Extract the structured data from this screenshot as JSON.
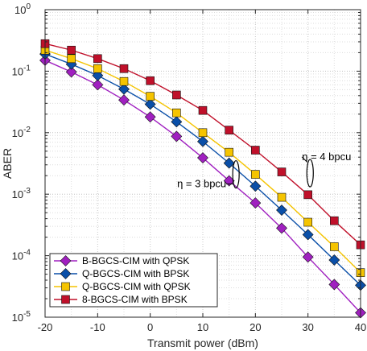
{
  "chart_data": {
    "type": "line",
    "title": "",
    "xlabel": "Transmit power (dBm)",
    "ylabel": "ABER",
    "xlim": [
      -20,
      40
    ],
    "ylim": [
      1e-05,
      1
    ],
    "yscale": "log",
    "grid": true,
    "legend_position": "bottom-left",
    "x": [
      -20,
      -15,
      -10,
      -5,
      0,
      5,
      10,
      15,
      20,
      25,
      30,
      35,
      40
    ],
    "x_ticks": [
      "-20",
      "-10",
      "0",
      "10",
      "20",
      "30",
      "40"
    ],
    "y_ticks": [
      {
        "base": "10",
        "exp": "0"
      },
      {
        "base": "10",
        "exp": "-1"
      },
      {
        "base": "10",
        "exp": "-2"
      },
      {
        "base": "10",
        "exp": "-3"
      },
      {
        "base": "10",
        "exp": "-4"
      },
      {
        "base": "10",
        "exp": "-5"
      }
    ],
    "series": [
      {
        "name": "B-BGCS-CIM with QPSK",
        "color": "#a020c0",
        "marker": "diamond",
        "values": [
          0.15,
          0.097,
          0.06,
          0.034,
          0.018,
          0.0087,
          0.0039,
          0.00165,
          0.00072,
          0.00028,
          9.5e-05,
          3.4e-05,
          1.18e-05
        ]
      },
      {
        "name": "Q-BGCS-CIM with BPSK",
        "color": "#0a4fa8",
        "marker": "diamond",
        "values": [
          0.19,
          0.13,
          0.085,
          0.051,
          0.029,
          0.015,
          0.0072,
          0.0032,
          0.00135,
          0.00055,
          0.00022,
          8.5e-05,
          3.3e-05
        ]
      },
      {
        "name": "Q-BGCS-CIM with QPSK",
        "color": "#f5c400",
        "marker": "square",
        "values": [
          0.22,
          0.16,
          0.11,
          0.068,
          0.039,
          0.021,
          0.01,
          0.0048,
          0.0021,
          0.00089,
          0.00035,
          0.00014,
          5.3e-05
        ]
      },
      {
        "name": "8-BGCS-CIM with BPSK",
        "color": "#c0102a",
        "marker": "square",
        "values": [
          0.28,
          0.22,
          0.16,
          0.11,
          0.07,
          0.041,
          0.023,
          0.011,
          0.0052,
          0.0023,
          0.00098,
          0.00037,
          0.00015
        ]
      }
    ],
    "annotations": [
      {
        "text": "η = 3 bpcu",
        "x": 16.3,
        "y": 0.0021
      },
      {
        "text": "η = 4 bpcu",
        "x": 30.4,
        "y": 0.0022
      }
    ]
  }
}
